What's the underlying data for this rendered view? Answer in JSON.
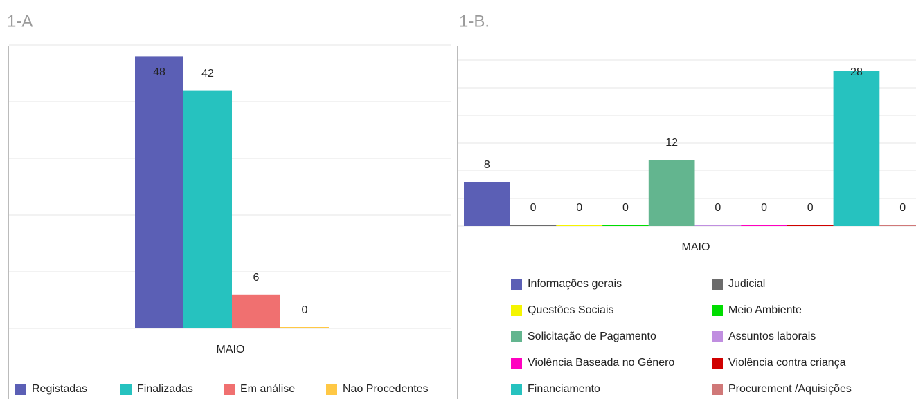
{
  "charts_header": [
    "1-A",
    "1-B."
  ],
  "chart_data": [
    {
      "type": "bar",
      "categories": [
        "MAIO"
      ],
      "ylim": [
        0,
        50
      ],
      "yticks": [
        0,
        10,
        20,
        30,
        40,
        50
      ],
      "grid": true,
      "series": [
        {
          "name": "Registadas",
          "color": "#5b5fb5",
          "values": [
            48
          ]
        },
        {
          "name": "Finalizadas",
          "color": "#26c2bf",
          "values": [
            42
          ]
        },
        {
          "name": "Em análise",
          "color": "#f07070",
          "values": [
            6
          ]
        },
        {
          "name": "Nao Procedentes",
          "color": "#ffc845",
          "values": [
            0
          ]
        }
      ]
    },
    {
      "type": "bar",
      "categories": [
        "MAIO"
      ],
      "ylim": [
        0,
        30
      ],
      "yticks": [
        0,
        5,
        10,
        15,
        20,
        25,
        30
      ],
      "grid": true,
      "series": [
        {
          "name": "Informações gerais",
          "color": "#5b5fb5",
          "values": [
            8
          ]
        },
        {
          "name": "Judicial",
          "color": "#6b6b6b",
          "values": [
            0
          ]
        },
        {
          "name": "Questões Sociais",
          "color": "#f5f500",
          "values": [
            0
          ]
        },
        {
          "name": "Meio Ambiente",
          "color": "#00dd00",
          "values": [
            0
          ]
        },
        {
          "name": "Solicitação de Pagamento",
          "color": "#63b58f",
          "values": [
            12
          ]
        },
        {
          "name": "Assuntos laborais",
          "color": "#c08ee0",
          "values": [
            0
          ]
        },
        {
          "name": "Violência Baseada no Género",
          "color": "#ff00c0",
          "values": [
            0
          ]
        },
        {
          "name": "Violência contra criança",
          "color": "#d00000",
          "values": [
            0
          ]
        },
        {
          "name": "Financiamento",
          "color": "#26c2bf",
          "values": [
            28
          ]
        },
        {
          "name": "Procurement /Aquisições",
          "color": "#d07878",
          "values": [
            0
          ]
        }
      ]
    }
  ]
}
